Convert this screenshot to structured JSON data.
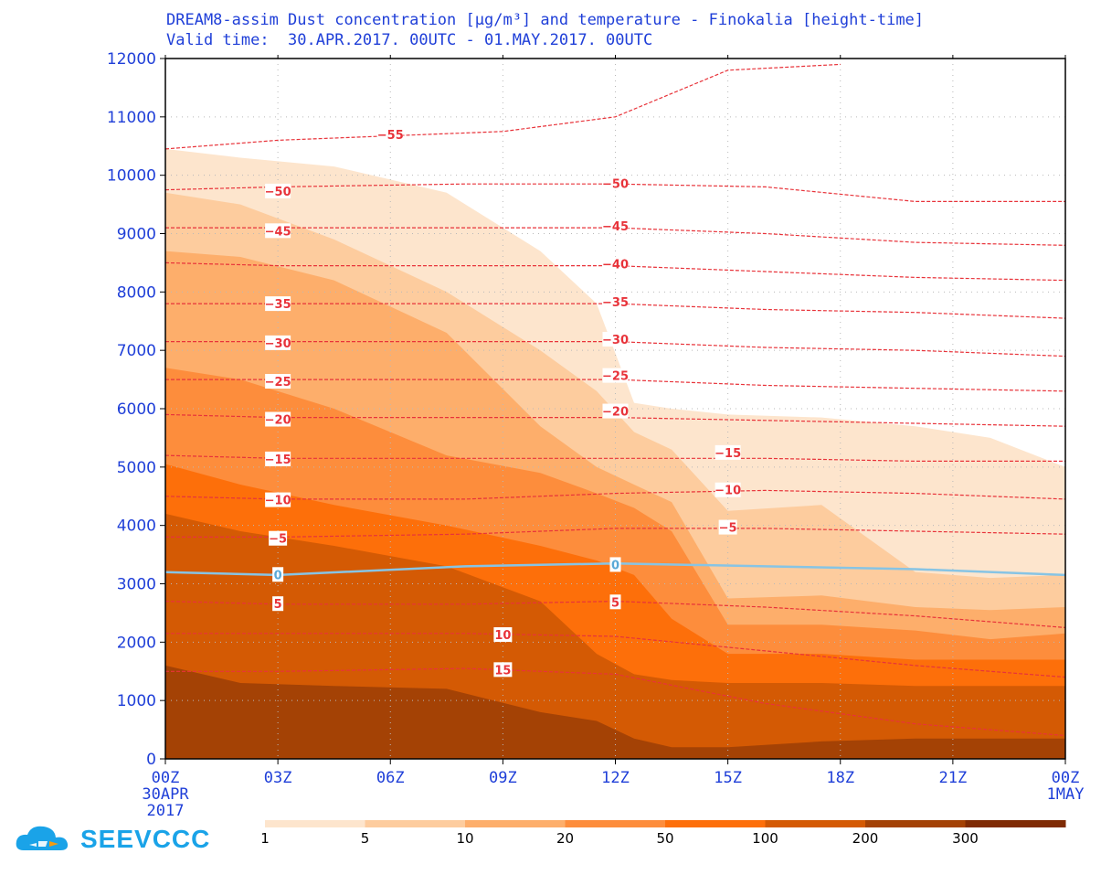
{
  "header": {
    "title_line1": "DREAM8-assim Dust concentration [μg/m³] and temperature - Finokalia [height-time]",
    "title_line2": "Valid time:  30.APR.2017. 00UTC - 01.MAY.2017. 00UTC"
  },
  "logo": {
    "text": "SEEVCCC",
    "icon": "cloud-logo-icon"
  },
  "colors": {
    "title": "#1f3fd8",
    "axis_text": "#1f3fd8",
    "frame": "#000000",
    "isotherm": "#e8333a",
    "freezing_line": "#87c4e4",
    "logo": "#1aa3e8",
    "levels": [
      "#fde5cd",
      "#fdcc9e",
      "#fdae6b",
      "#fd8d3c",
      "#fd6f0a",
      "#d45a04",
      "#a44205",
      "#7f2b04"
    ]
  },
  "chart_data": {
    "type": "heatmap",
    "title": "DREAM8-assim Dust concentration [μg/m³] and temperature - Finokalia [height-time]",
    "subtitle": "Valid time:  30.APR.2017. 00UTC - 01.MAY.2017. 00UTC",
    "xlabel": "",
    "ylabel": "",
    "x_hours": [
      0,
      3,
      6,
      9,
      12,
      15,
      18,
      21,
      24
    ],
    "xticks": [
      {
        "label": "00Z",
        "sub": [
          "30APR",
          "2017"
        ]
      },
      {
        "label": "03Z",
        "sub": []
      },
      {
        "label": "06Z",
        "sub": []
      },
      {
        "label": "09Z",
        "sub": []
      },
      {
        "label": "12Z",
        "sub": []
      },
      {
        "label": "15Z",
        "sub": []
      },
      {
        "label": "18Z",
        "sub": []
      },
      {
        "label": "21Z",
        "sub": []
      },
      {
        "label": "00Z",
        "sub": [
          "1MAY"
        ]
      }
    ],
    "ylim": [
      0,
      12000
    ],
    "yticks": [
      0,
      1000,
      2000,
      3000,
      4000,
      5000,
      6000,
      7000,
      8000,
      9000,
      10000,
      11000,
      12000
    ],
    "grid": true,
    "legend": {
      "placement": "bottom",
      "levels": [
        "1",
        "5",
        "10",
        "20",
        "50",
        "100",
        "200",
        "300"
      ]
    },
    "dust_upper_bounds_m": [
      {
        "level": "1",
        "heights": [
          10450,
          10300,
          10150,
          9700,
          8700,
          7800,
          6100,
          6000,
          5900,
          5850,
          5700,
          5500,
          5000
        ]
      },
      {
        "level": "5",
        "heights": [
          9700,
          9500,
          8900,
          8000,
          7000,
          6300,
          5600,
          5300,
          4250,
          4350,
          3200,
          3100,
          3150
        ]
      },
      {
        "level": "10",
        "heights": [
          8700,
          8600,
          8200,
          7300,
          5700,
          5000,
          4700,
          4400,
          2750,
          2800,
          2600,
          2550,
          2600
        ]
      },
      {
        "level": "20",
        "heights": [
          6700,
          6500,
          6000,
          5200,
          4900,
          4550,
          4300,
          3900,
          2300,
          2300,
          2200,
          2050,
          2150
        ]
      },
      {
        "level": "50",
        "heights": [
          5050,
          4700,
          4350,
          4000,
          3650,
          3400,
          3150,
          2400,
          1800,
          1800,
          1700,
          1700,
          1700
        ]
      },
      {
        "level": "100",
        "heights": [
          4200,
          3900,
          3650,
          3300,
          2700,
          1800,
          1450,
          1350,
          1300,
          1300,
          1250,
          1250,
          1250
        ]
      },
      {
        "level": "200",
        "heights": [
          1600,
          1300,
          1250,
          1200,
          800,
          650,
          350,
          200,
          200,
          300,
          350,
          350,
          350
        ]
      }
    ],
    "dust_bounds_x_hours": [
      0,
      2,
      4.5,
      7.5,
      10,
      11.5,
      12.5,
      13.5,
      15,
      17.5,
      20,
      22,
      24
    ],
    "temperature_isotherms": [
      {
        "value": -55,
        "heights": [
          10450,
          10600,
          10750,
          11000,
          11800,
          11900
        ]
      },
      {
        "value": -50,
        "heights": [
          9750,
          9800,
          9850,
          9850,
          9800,
          9550,
          9550
        ]
      },
      {
        "value": -45,
        "heights": [
          9100,
          9100,
          9100,
          9100,
          9000,
          8850,
          8800
        ]
      },
      {
        "value": -40,
        "heights": [
          8500,
          8450,
          8450,
          8450,
          8350,
          8250,
          8200
        ]
      },
      {
        "value": -35,
        "heights": [
          7800,
          7800,
          7800,
          7800,
          7700,
          7650,
          7550
        ]
      },
      {
        "value": -30,
        "heights": [
          7150,
          7150,
          7150,
          7150,
          7050,
          7000,
          6900
        ]
      },
      {
        "value": -25,
        "heights": [
          6500,
          6500,
          6500,
          6500,
          6400,
          6350,
          6300
        ]
      },
      {
        "value": -20,
        "heights": [
          5900,
          5850,
          5850,
          5850,
          5800,
          5750,
          5700
        ]
      },
      {
        "value": -15,
        "heights": [
          5200,
          5150,
          5150,
          5150,
          5150,
          5100,
          5100
        ]
      },
      {
        "value": -10,
        "heights": [
          4500,
          4450,
          4450,
          4550,
          4600,
          4550,
          4450
        ]
      },
      {
        "value": -5,
        "heights": [
          3800,
          3800,
          3850,
          3950,
          3950,
          3900,
          3850
        ]
      },
      {
        "value": 0,
        "heights": [
          3200,
          3150,
          3300,
          3350,
          3300,
          3250,
          3150
        ]
      },
      {
        "value": 5,
        "heights": [
          2700,
          2650,
          2650,
          2700,
          2600,
          2450,
          2250
        ]
      },
      {
        "value": 10,
        "heights": [
          2150,
          2150,
          2150,
          2100,
          1850,
          1600,
          1400
        ]
      },
      {
        "value": 15,
        "heights": [
          1500,
          1500,
          1550,
          1450,
          950,
          600,
          400
        ]
      }
    ],
    "isotherm_x_hours": [
      0,
      3,
      8,
      12,
      16,
      20,
      24
    ],
    "isotherm_55_x_hours": [
      0,
      3,
      9,
      12,
      15,
      18
    ],
    "contour_labels": [
      {
        "text": "-55",
        "x": 6,
        "y": 10700
      },
      {
        "text": "-50",
        "x": 3,
        "y": 9730
      },
      {
        "text": "-45",
        "x": 3,
        "y": 9050
      },
      {
        "text": "-35",
        "x": 3,
        "y": 7800
      },
      {
        "text": "-30",
        "x": 3,
        "y": 7130
      },
      {
        "text": "-25",
        "x": 3,
        "y": 6470
      },
      {
        "text": "-20",
        "x": 3,
        "y": 5820
      },
      {
        "text": "-15",
        "x": 3,
        "y": 5140
      },
      {
        "text": "-10",
        "x": 3,
        "y": 4440
      },
      {
        "text": "-5",
        "x": 3,
        "y": 3780
      },
      {
        "text": "0",
        "x": 3,
        "y": 3160
      },
      {
        "text": "5",
        "x": 3,
        "y": 2660
      },
      {
        "text": "10",
        "x": 9,
        "y": 2130
      },
      {
        "text": "15",
        "x": 9,
        "y": 1530
      },
      {
        "text": "-50",
        "x": 12,
        "y": 9860
      },
      {
        "text": "-45",
        "x": 12,
        "y": 9130
      },
      {
        "text": "-40",
        "x": 12,
        "y": 8480
      },
      {
        "text": "-35",
        "x": 12,
        "y": 7830
      },
      {
        "text": "-30",
        "x": 12,
        "y": 7190
      },
      {
        "text": "-25",
        "x": 12,
        "y": 6570
      },
      {
        "text": "-20",
        "x": 12,
        "y": 5960
      },
      {
        "text": "0",
        "x": 12,
        "y": 3330
      },
      {
        "text": "5",
        "x": 12,
        "y": 2690
      },
      {
        "text": "-15",
        "x": 15,
        "y": 5250
      },
      {
        "text": "-10",
        "x": 15,
        "y": 4610
      },
      {
        "text": "-5",
        "x": 15,
        "y": 3970
      }
    ]
  }
}
